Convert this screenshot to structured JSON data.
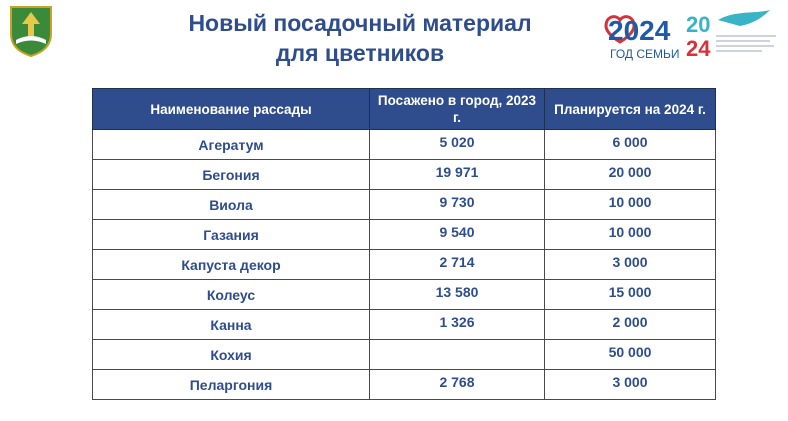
{
  "header": {
    "title_line1": "Новый посадочный материал",
    "title_line2": "для цветников"
  },
  "logo": {
    "year": "2024",
    "caption": "ГОД СЕМЬИ",
    "year_split_top": "20",
    "year_split_bottom": "24"
  },
  "table": {
    "headers": [
      "Наименование рассады",
      "Посажено в город, 2023 г.",
      "Планируется на 2024 г."
    ],
    "rows": [
      {
        "name": "Агератум",
        "planted_2023": "5 020",
        "planned_2024": "6 000"
      },
      {
        "name": "Бегония",
        "planted_2023": "19 971",
        "planned_2024": "20 000"
      },
      {
        "name": "Виола",
        "planted_2023": "9 730",
        "planned_2024": "10 000"
      },
      {
        "name": "Газания",
        "planted_2023": "9 540",
        "planned_2024": "10 000"
      },
      {
        "name": "Капуста декор",
        "planted_2023": "2 714",
        "planned_2024": "3 000"
      },
      {
        "name": "Колеус",
        "planted_2023": "13 580",
        "planned_2024": "15 000"
      },
      {
        "name": "Канна",
        "planted_2023": "1 326",
        "planned_2024": "2 000"
      },
      {
        "name": "Кохия",
        "planted_2023": "",
        "planned_2024": "50 000"
      },
      {
        "name": "Пеларгония",
        "planted_2023": "2 768",
        "planned_2024": "3 000"
      }
    ]
  },
  "colors": {
    "header_bg": "#2f4d8c",
    "text_blue": "#2f4d8c",
    "logo_blue": "#1f5aa8",
    "logo_teal": "#39b3c6",
    "logo_red": "#d8313a"
  }
}
